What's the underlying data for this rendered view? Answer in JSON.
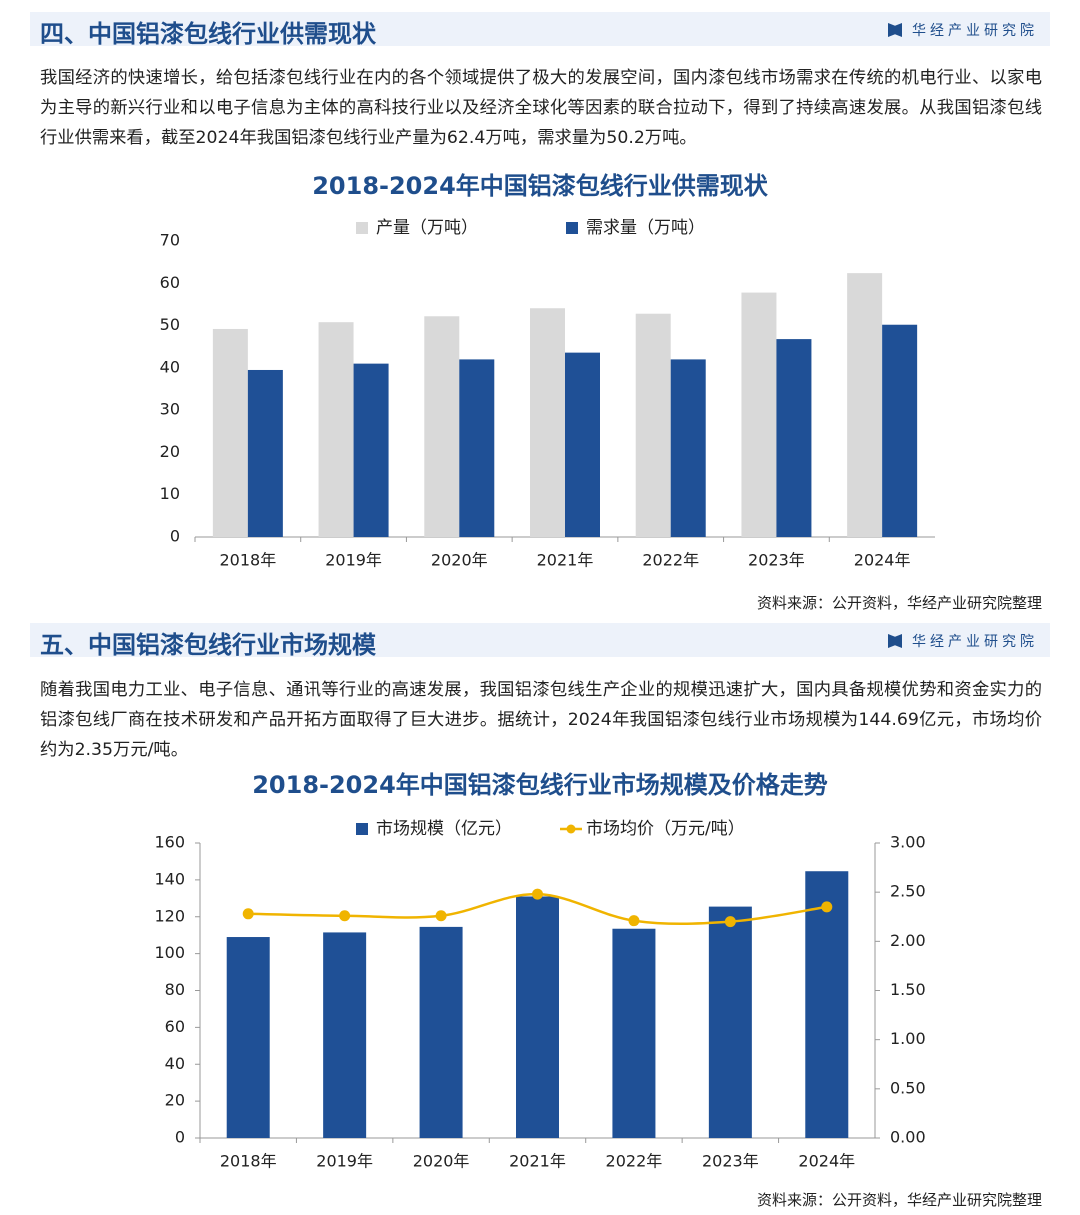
{
  "brand": "华经产业研究院",
  "sections": [
    {
      "heading": "四、中国铝漆包线行业供需现状",
      "paragraph": "我国经济的快速增长，给包括漆包线行业在内的各个领域提供了极大的发展空间，国内漆包线市场需求在传统的机电行业、以家电为主导的新兴行业和以电子信息为主体的高科技行业以及经济全球化等因素的联合拉动下，得到了持续高速发展。从我国铝漆包线行业供需来看，截至2024年我国铝漆包线行业产量为62.4万吨，需求量为50.2万吨。",
      "source": "资料来源：公开资料，华经产业研究院整理"
    },
    {
      "heading": "五、中国铝漆包线行业市场规模",
      "paragraph": "随着我国电力工业、电子信息、通讯等行业的高速发展，我国铝漆包线生产企业的规模迅速扩大，国内具备规模优势和资金实力的铝漆包线厂商在技术研发和产品开拓方面取得了巨大进步。据统计，2024年我国铝漆包线行业市场规模为144.69亿元，市场均价约为2.35万元/吨。",
      "source": "资料来源：公开资料，华经产业研究院整理"
    }
  ],
  "chart_data": [
    {
      "type": "bar",
      "title": "2018-2024年中国铝漆包线行业供需现状",
      "categories": [
        "2018年",
        "2019年",
        "2020年",
        "2021年",
        "2022年",
        "2023年",
        "2024年"
      ],
      "series": [
        {
          "name": "产量（万吨）",
          "color": "#d9d9d9",
          "values": [
            49.2,
            50.8,
            52.2,
            54.1,
            52.8,
            57.8,
            62.4
          ]
        },
        {
          "name": "需求量（万吨）",
          "color": "#1f5096",
          "values": [
            39.5,
            41.0,
            42.0,
            43.6,
            42.0,
            46.8,
            50.2
          ]
        }
      ],
      "ylim": [
        0,
        70
      ],
      "yticks": [
        0,
        10,
        20,
        30,
        40,
        50,
        60,
        70
      ]
    },
    {
      "type": "combo",
      "title": "2018-2024年中国铝漆包线行业市场规模及价格走势",
      "categories": [
        "2018年",
        "2019年",
        "2020年",
        "2021年",
        "2022年",
        "2023年",
        "2024年"
      ],
      "series": [
        {
          "name": "市场规模（亿元）",
          "color": "#1f5096",
          "type": "bar",
          "values": [
            109,
            111.5,
            114.5,
            131,
            113.5,
            125.5,
            144.69
          ]
        },
        {
          "name": "市场均价（万元/吨）",
          "color": "#f0b400",
          "type": "line",
          "axis": "y2",
          "values": [
            2.28,
            2.26,
            2.26,
            2.48,
            2.21,
            2.2,
            2.35
          ]
        }
      ],
      "ylim": [
        0,
        160
      ],
      "yticks": [
        0,
        20,
        40,
        60,
        80,
        100,
        120,
        140,
        160
      ],
      "y2lim": [
        0,
        3
      ],
      "y2ticks": [
        {
          "value": 0,
          "label": "0.00"
        },
        {
          "value": 0.5,
          "label": "0.50"
        },
        {
          "value": 1,
          "label": "1.00"
        },
        {
          "value": 1.5,
          "label": "1.50"
        },
        {
          "value": 2,
          "label": "2.00"
        },
        {
          "value": 2.5,
          "label": "2.50"
        },
        {
          "value": 3,
          "label": "3.00"
        }
      ]
    }
  ]
}
